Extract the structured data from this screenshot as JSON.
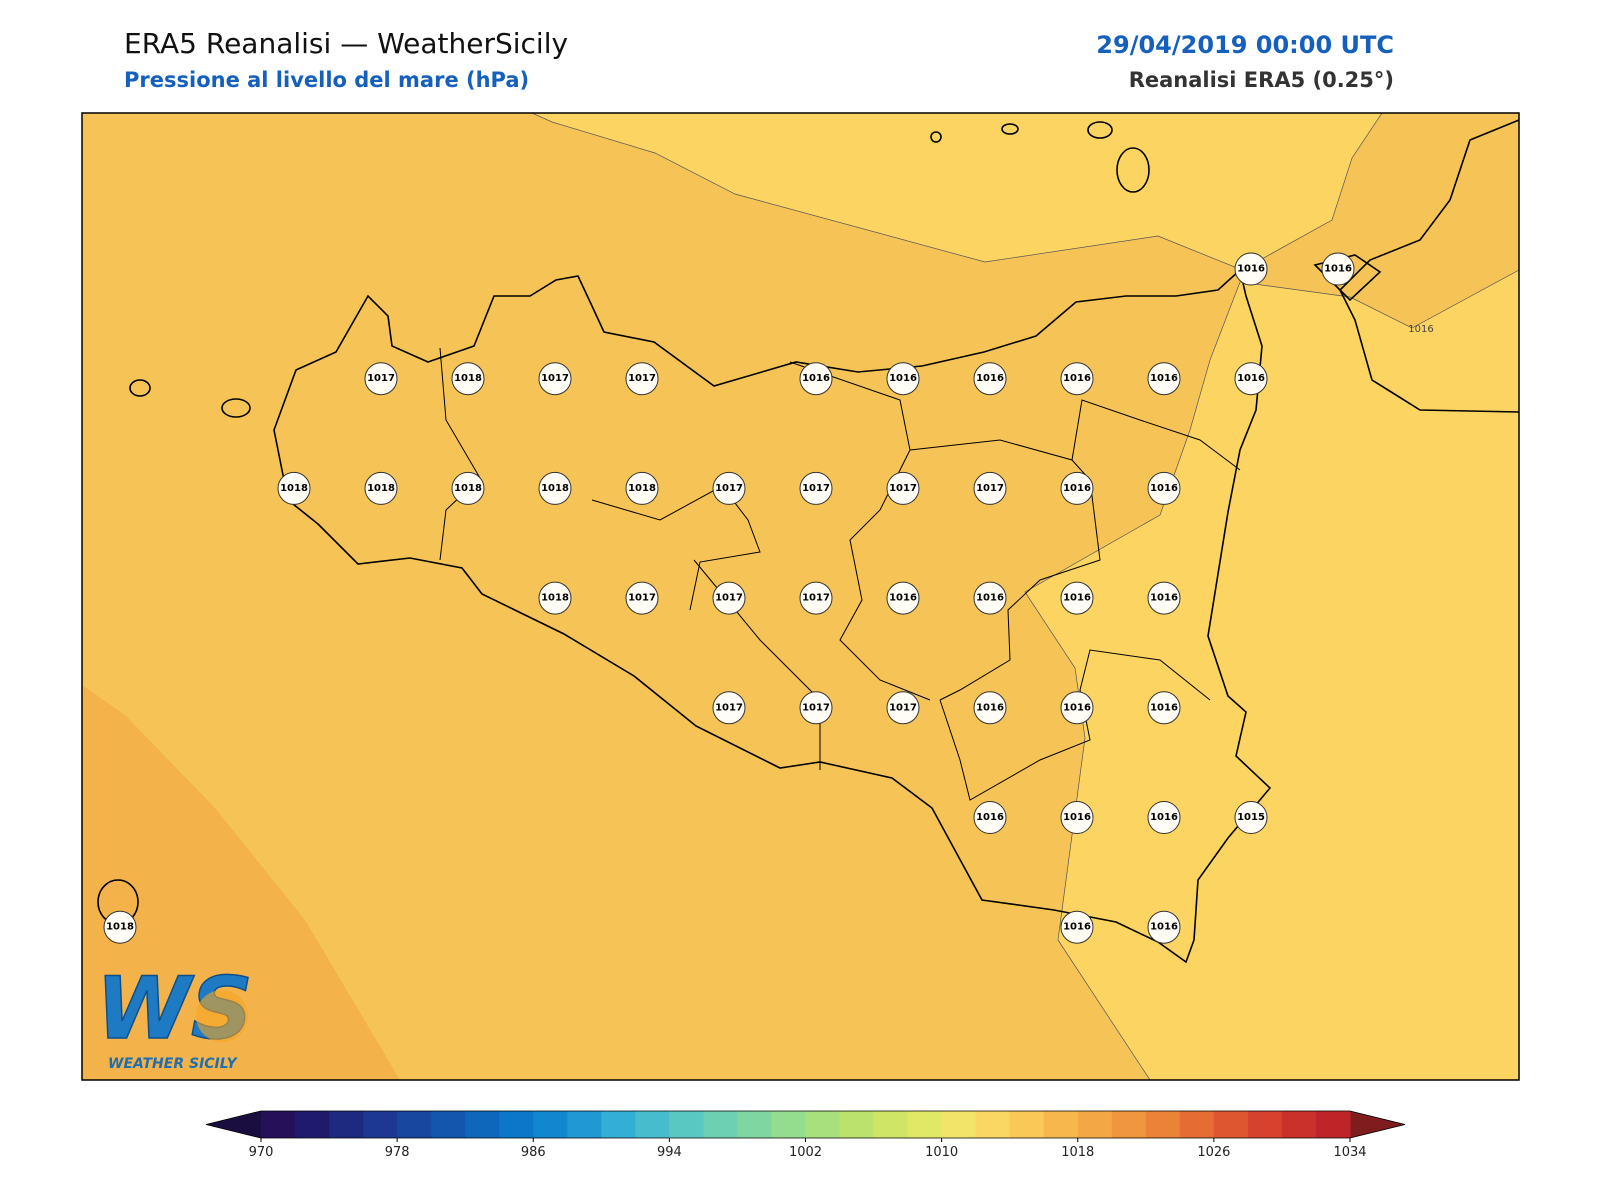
{
  "header": {
    "title": "ERA5 Reanalisi — WeatherSicily",
    "subtitle": "Pressione al livello del mare (hPa)",
    "datetime": "29/04/2019 00:00 UTC",
    "source": "Reanalisi ERA5 (0.25°)"
  },
  "map": {
    "contour_label": "1016",
    "points": [
      1016,
      1016,
      1017,
      1018,
      1017,
      1017,
      1016,
      1016,
      1016,
      1016,
      1016,
      1016,
      1018,
      1018,
      1018,
      1018,
      1018,
      1017,
      1017,
      1017,
      1017,
      1016,
      1016,
      1018,
      1017,
      1017,
      1017,
      1016,
      1016,
      1016,
      1016,
      1017,
      1017,
      1017,
      1016,
      1016,
      1016,
      1016,
      1016,
      1016,
      1015,
      1018,
      1016,
      1016
    ]
  },
  "colorbar": {
    "ticks": [
      970,
      978,
      986,
      994,
      1002,
      1010,
      1018,
      1026,
      1034
    ],
    "colors": [
      "#24115a",
      "#1f1a6b",
      "#1d2a80",
      "#1c3890",
      "#17479f",
      "#1257ad",
      "#0f67bb",
      "#0d77c7",
      "#1287cf",
      "#1f98d4",
      "#33aed4",
      "#47bccd",
      "#5ac8c2",
      "#6dd0b2",
      "#80d6a0",
      "#94dc8e",
      "#a8e07d",
      "#bce26e",
      "#cfe566",
      "#e1e866",
      "#f2e469",
      "#fad762",
      "#f9c857",
      "#f6b84d",
      "#f3a845",
      "#ef963e",
      "#ea8238",
      "#e56d34",
      "#de5630",
      "#d6422d",
      "#cb312b",
      "#bd2528"
    ],
    "under_color": "#1a0d40",
    "over_color": "#7f1c1e"
  },
  "logo": {
    "mark": "WS",
    "text": "WEATHER SICILY"
  }
}
